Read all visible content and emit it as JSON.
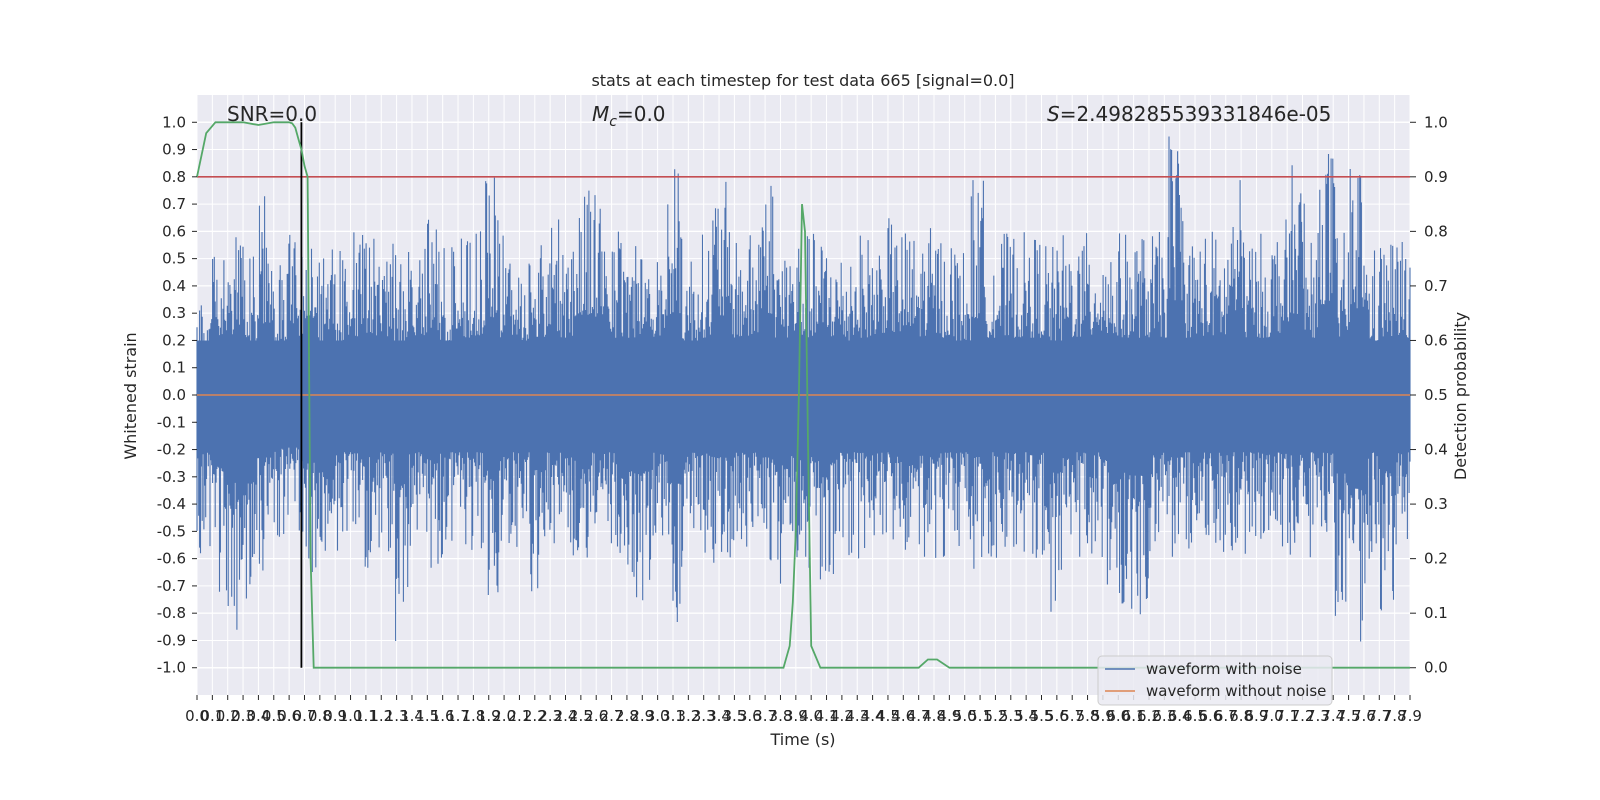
{
  "chart_data": {
    "type": "line",
    "title": "stats at each timestep for test data 665 [signal=0.0]",
    "xlabel": "Time (s)",
    "ylabel": "Whitened strain",
    "ylabel_right": "Detection probability",
    "xlim": [
      0.0,
      7.9
    ],
    "ylim": [
      -1.1,
      1.1
    ],
    "ylim_right": [
      -0.05,
      1.05
    ],
    "grid": true,
    "legend_position": "bottom-right",
    "x_ticks": [
      "0.0",
      "0.1",
      "0.2",
      "0.3",
      "0.4",
      "0.5",
      "0.6",
      "0.7",
      "0.8",
      "0.9",
      "1.0",
      "1.1",
      "1.2",
      "1.3",
      "1.4",
      "1.5",
      "1.6",
      "1.7",
      "1.8",
      "1.9",
      "2.0",
      "2.1",
      "2.2",
      "2.3",
      "2.4",
      "2.5",
      "2.6",
      "2.7",
      "2.8",
      "2.9",
      "3.0",
      "3.1",
      "3.2",
      "3.3",
      "3.4",
      "3.5",
      "3.6",
      "3.7",
      "3.8",
      "3.9",
      "4.0",
      "4.1",
      "4.2",
      "4.3",
      "4.4",
      "4.5",
      "4.6",
      "4.7",
      "4.8",
      "4.9",
      "5.0",
      "5.1",
      "5.2",
      "5.3",
      "5.4",
      "5.5",
      "5.6",
      "5.7",
      "5.8",
      "5.9",
      "6.0",
      "6.1",
      "6.2",
      "6.3",
      "6.4",
      "6.5",
      "6.6",
      "6.7",
      "6.8",
      "6.9",
      "7.0",
      "7.1",
      "7.2",
      "7.3",
      "7.4",
      "7.5",
      "7.6",
      "7.7",
      "7.8",
      "7.9"
    ],
    "y_ticks_left": [
      "1.0",
      "0.9",
      "0.8",
      "0.7",
      "0.6",
      "0.5",
      "0.4",
      "0.3",
      "0.2",
      "0.1",
      "0.0",
      "-0.1",
      "-0.2",
      "-0.3",
      "-0.4",
      "-0.5",
      "-0.6",
      "-0.7",
      "-0.8",
      "-0.9",
      "-1.0"
    ],
    "y_ticks_right": [
      "1.0",
      "0.9",
      "0.8",
      "0.7",
      "0.6",
      "0.5",
      "0.4",
      "0.3",
      "0.2",
      "0.1",
      "0.0"
    ],
    "annotations": {
      "snr": "SNR=0.0",
      "mc_symbol": "M",
      "mc_sub": "c",
      "mc_value": "=0.0",
      "s_symbol": "S",
      "s_value": "=2.498285539331846e-05"
    },
    "threshold": 0.9,
    "marker_time": 0.68,
    "series": [
      {
        "name": "waveform with noise",
        "color": "#4c72b0",
        "noise_envelope_upper": [
          0.35,
          0.62,
          0.6,
          0.55,
          0.75,
          0.5,
          0.62,
          0.8,
          0.55,
          0.55,
          0.6,
          0.62,
          0.6,
          0.55,
          0.62,
          0.65,
          0.55,
          0.6,
          0.62,
          0.8,
          0.6,
          0.55,
          0.6,
          0.65,
          0.6,
          0.84,
          0.8,
          0.6,
          0.6,
          0.6,
          0.6,
          0.85,
          0.55,
          0.6,
          0.8,
          0.6,
          0.6,
          0.85,
          0.6,
          0.6,
          0.6,
          0.6,
          0.55,
          0.6,
          0.6,
          0.65,
          0.62,
          0.6,
          0.62,
          0.6,
          0.55,
          0.8,
          0.6,
          0.6,
          0.6,
          0.6,
          0.55,
          0.6,
          0.6,
          0.65,
          0.6,
          0.6,
          0.6,
          0.6,
          0.99,
          0.6,
          0.62,
          0.6,
          0.8,
          0.6,
          0.6,
          0.65,
          0.85,
          0.6,
          0.95,
          0.6,
          0.9,
          0.55,
          0.6,
          0.6
        ],
        "noise_envelope_lower": [
          -0.6,
          -0.75,
          -0.92,
          -0.9,
          -0.65,
          -0.55,
          -0.55,
          -0.65,
          -0.8,
          -0.6,
          -0.6,
          -0.65,
          -0.6,
          -0.93,
          -0.6,
          -0.65,
          -0.6,
          -0.6,
          -0.6,
          -0.78,
          -0.6,
          -0.6,
          -0.78,
          -0.6,
          -0.65,
          -0.6,
          -0.6,
          -0.6,
          -0.8,
          -0.8,
          -0.6,
          -0.92,
          -0.6,
          -0.6,
          -0.65,
          -0.6,
          -0.6,
          -0.65,
          -0.73,
          -0.6,
          -0.65,
          -0.7,
          -0.6,
          -0.6,
          -0.6,
          -0.6,
          -0.6,
          -0.6,
          -0.65,
          -0.6,
          -0.6,
          -0.65,
          -0.6,
          -0.6,
          -0.6,
          -0.6,
          -0.8,
          -0.6,
          -0.6,
          -0.6,
          -0.8,
          -0.8,
          -0.82,
          -0.6,
          -0.65,
          -0.6,
          -0.6,
          -0.6,
          -0.6,
          -0.6,
          -0.6,
          -0.6,
          -0.6,
          -0.6,
          -0.6,
          -0.82,
          -0.98,
          -0.6,
          -0.8,
          -0.6
        ]
      },
      {
        "name": "waveform without noise",
        "color": "#dd8452",
        "constant_value": 0.0
      },
      {
        "name": "",
        "color": "#55a868",
        "axis": "right",
        "x": [
          0.0,
          0.06,
          0.12,
          0.2,
          0.3,
          0.4,
          0.5,
          0.55,
          0.6,
          0.62,
          0.64,
          0.66,
          0.68,
          0.7,
          0.72,
          0.74,
          0.76,
          0.8,
          1.0,
          2.0,
          3.0,
          3.7,
          3.78,
          3.82,
          3.86,
          3.88,
          3.9,
          3.92,
          3.94,
          3.96,
          3.98,
          4.0,
          4.06,
          4.5,
          4.7,
          4.76,
          4.8,
          4.82,
          4.9,
          5.0,
          6.0,
          7.0,
          7.9
        ],
        "y": [
          0.9,
          0.98,
          1.0,
          1.0,
          1.0,
          0.995,
          1.0,
          1.0,
          1.0,
          0.998,
          0.99,
          0.97,
          0.95,
          0.92,
          0.9,
          0.2,
          0.0,
          0.0,
          0.0,
          0.0,
          0.0,
          0.0,
          0.0,
          0.0,
          0.04,
          0.12,
          0.25,
          0.5,
          0.85,
          0.8,
          0.4,
          0.04,
          0.0,
          0.0,
          0.0,
          0.015,
          0.015,
          0.015,
          0.0,
          0.0,
          0.0,
          0.0,
          0.0
        ]
      }
    ]
  },
  "legend": {
    "items": [
      {
        "label": "waveform with noise",
        "color": "#4c72b0"
      },
      {
        "label": "waveform without noise",
        "color": "#dd8452"
      }
    ]
  }
}
